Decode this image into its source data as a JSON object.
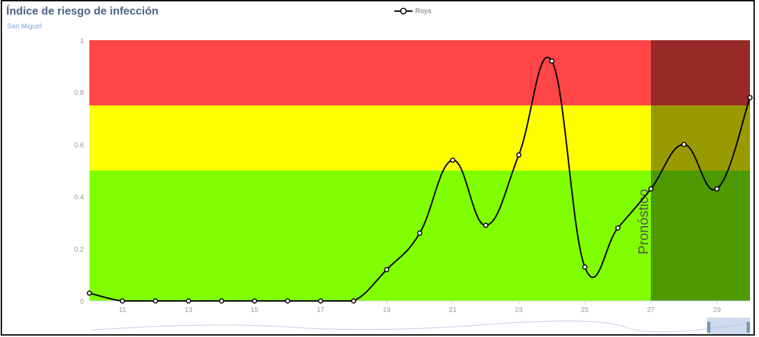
{
  "header": {
    "title": "Índice de riesgo de infección",
    "subtitle": "San Miguel"
  },
  "legend": {
    "label": "Roya"
  },
  "colors": {
    "high_risk": "#ff4545",
    "medium_risk": "#ffff00",
    "low_risk": "#80ff00",
    "forecast_overlay": "#000000",
    "line": "#000000",
    "title": "#4a6283",
    "subtitle": "#7aa3e0"
  },
  "chart_data": {
    "type": "line",
    "title": "Índice de riesgo de infección",
    "subtitle": "San Miguel",
    "xlabel": "",
    "ylabel": "",
    "x": [
      10,
      11,
      12,
      13,
      14,
      15,
      16,
      17,
      18,
      19,
      20,
      21,
      22,
      23,
      24,
      25,
      26,
      27,
      28,
      29,
      30
    ],
    "x_tick_labels": [
      "11",
      "13",
      "15",
      "17",
      "19",
      "21",
      "23",
      "25",
      "27",
      "29"
    ],
    "y_tick_labels": [
      "0",
      "0.2",
      "0.4",
      "0.6",
      "0.8",
      "1"
    ],
    "xlim": [
      10,
      30
    ],
    "ylim": [
      0,
      1
    ],
    "series": [
      {
        "name": "Roya",
        "values": [
          0.03,
          0,
          0,
          0,
          0,
          0,
          0,
          0,
          0,
          0.12,
          0.26,
          0.54,
          0.29,
          0.56,
          0.92,
          0.13,
          0.28,
          0.43,
          0.6,
          0.43,
          0.78
        ]
      }
    ],
    "risk_bands": [
      {
        "from": 0,
        "to": 0.5,
        "color": "#80ff00"
      },
      {
        "from": 0.5,
        "to": 0.75,
        "color": "#ffff00"
      },
      {
        "from": 0.75,
        "to": 1,
        "color": "#ff4545"
      }
    ],
    "forecast": {
      "from_x": 27,
      "to_x": 30,
      "label": "Pronóstico"
    },
    "legend_position": "top-center",
    "grid": false
  }
}
